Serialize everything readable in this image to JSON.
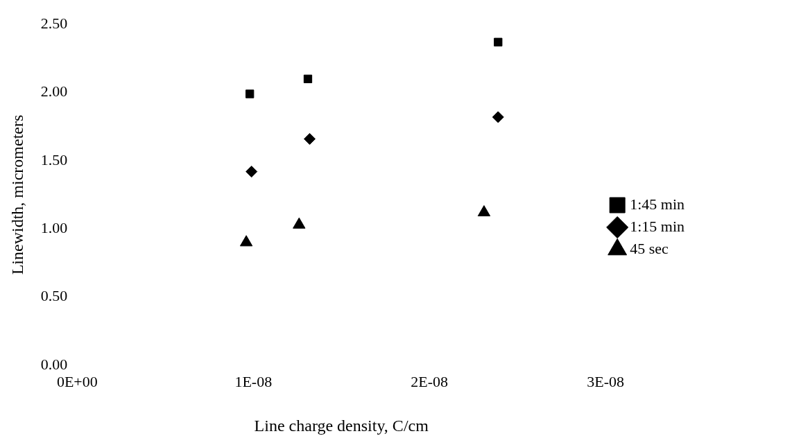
{
  "chart_data": {
    "type": "scatter",
    "xlabel": "Line charge density, C/cm",
    "ylabel": "Linewidth, micrometers",
    "xlim": [
      0,
      3e-08
    ],
    "xticks": [
      {
        "value": 0,
        "label": "0E+00"
      },
      {
        "value": 1e-08,
        "label": "1E-08"
      },
      {
        "value": 2e-08,
        "label": "2E-08"
      },
      {
        "value": 3e-08,
        "label": "3E-08"
      }
    ],
    "ylim": [
      0,
      2.5
    ],
    "yticks": [
      {
        "value": 0,
        "label": "0.00"
      },
      {
        "value": 0.5,
        "label": "0.50"
      },
      {
        "value": 1,
        "label": "1.00"
      },
      {
        "value": 1.5,
        "label": "1.50"
      },
      {
        "value": 2,
        "label": "2.00"
      },
      {
        "value": 2.5,
        "label": "2.50"
      }
    ],
    "grid": false,
    "legend": "right",
    "series": [
      {
        "name": "1:45 min",
        "color": "#000000",
        "marker": "square",
        "x": [
          9.8e-09,
          1.31e-08,
          2.39e-08
        ],
        "values": [
          1.99,
          2.1,
          2.37
        ]
      },
      {
        "name": "1:15 min",
        "color": "#000000",
        "marker": "diamond",
        "x": [
          9.9e-09,
          1.32e-08,
          2.39e-08
        ],
        "values": [
          1.42,
          1.66,
          1.82
        ]
      },
      {
        "name": "45 sec",
        "color": "#000000",
        "marker": "triangle",
        "x": [
          9.6e-09,
          1.26e-08,
          2.31e-08
        ],
        "values": [
          0.9,
          1.03,
          1.12
        ]
      }
    ]
  }
}
